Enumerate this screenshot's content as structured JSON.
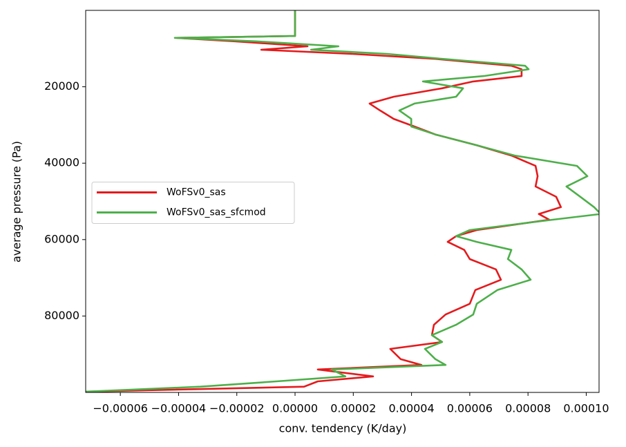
{
  "chart_data": {
    "type": "line",
    "xlabel": "conv. tendency (K/day)",
    "ylabel": "average pressure (Pa)",
    "xlim": [
      -7.19e-05,
      0.0001044
    ],
    "ylim": [
      100000,
      0
    ],
    "xticks": [
      {
        "value": -6e-05,
        "label": "−0.00006"
      },
      {
        "value": -4e-05,
        "label": "−0.00004"
      },
      {
        "value": -2e-05,
        "label": "−0.00002"
      },
      {
        "value": 0,
        "label": "0.00000"
      },
      {
        "value": 2e-05,
        "label": "0.00002"
      },
      {
        "value": 4e-05,
        "label": "0.00004"
      },
      {
        "value": 6e-05,
        "label": "0.00006"
      },
      {
        "value": 8e-05,
        "label": "0.00008"
      },
      {
        "value": 0.0001,
        "label": "0.00010"
      }
    ],
    "yticks": [
      20000,
      40000,
      60000,
      80000
    ],
    "legend": "center left",
    "y": [
      0,
      6700,
      7200,
      8100,
      9400,
      10300,
      11400,
      12700,
      14500,
      15400,
      17200,
      18600,
      20400,
      22600,
      24400,
      26200,
      28400,
      30400,
      32500,
      35300,
      38000,
      40700,
      43400,
      46100,
      48800,
      51500,
      53300,
      54800,
      57500,
      59100,
      60600,
      62700,
      65100,
      67800,
      70500,
      73200,
      76800,
      79600,
      82300,
      85000,
      86800,
      88600,
      91300,
      92800,
      94000,
      95800,
      97100,
      98500,
      99800
    ],
    "series": [
      {
        "name": "WoFSv0_sas",
        "color": "#e41a1c",
        "values": [
          0,
          0,
          -4.08e-05,
          -2.06e-05,
          4.3e-06,
          -1.16e-05,
          1.97e-05,
          4.82e-05,
          7.43e-05,
          7.78e-05,
          7.78e-05,
          6.12e-05,
          5.05e-05,
          3.39e-05,
          2.56e-05,
          2.92e-05,
          3.39e-05,
          4.1e-05,
          4.82e-05,
          6.24e-05,
          7.43e-05,
          8.26e-05,
          8.33e-05,
          8.26e-05,
          8.97e-05,
          9.13e-05,
          8.37e-05,
          8.73e-05,
          6.24e-05,
          5.53e-05,
          5.24e-05,
          5.81e-05,
          6e-05,
          6.9e-05,
          7.07e-05,
          6.19e-05,
          6e-05,
          5.17e-05,
          4.77e-05,
          4.7e-05,
          5.05e-05,
          3.27e-05,
          3.63e-05,
          4.34e-05,
          7.8e-06,
          2.68e-05,
          7.8e-06,
          3.1e-06,
          -7.2e-05
        ]
      },
      {
        "name": "WoFSv0_sas_sfcmod",
        "color": "#4daf4a",
        "values": [
          0,
          0,
          -4.13e-05,
          -1.35e-05,
          1.49e-05,
          5.5e-06,
          3.16e-05,
          5.05e-05,
          7.9e-05,
          8.02e-05,
          6.48e-05,
          4.39e-05,
          5.77e-05,
          5.53e-05,
          4.1e-05,
          3.58e-05,
          3.99e-05,
          3.99e-05,
          4.82e-05,
          6.24e-05,
          7.54e-05,
          9.68e-05,
          0.0001004,
          9.32e-05,
          9.8e-05,
          0.0001027,
          0.000105,
          8.85e-05,
          6e-05,
          5.53e-05,
          6.24e-05,
          7.43e-05,
          7.31e-05,
          7.78e-05,
          8.09e-05,
          6.95e-05,
          6.24e-05,
          6.12e-05,
          5.53e-05,
          4.7e-05,
          5.05e-05,
          4.46e-05,
          4.82e-05,
          5.17e-05,
          1.26e-05,
          1.73e-05,
          -6.4e-06,
          -3.25e-05,
          -7.2e-05
        ]
      }
    ]
  }
}
